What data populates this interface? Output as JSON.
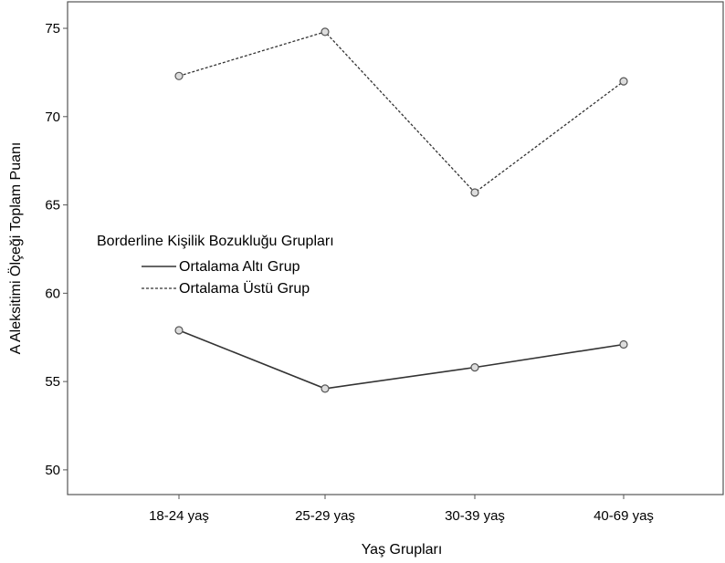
{
  "chart_data": {
    "type": "line",
    "title": "",
    "xlabel": "Yaş Grupları",
    "ylabel": "A Aleksitimi Ölçeği Toplam Puanı",
    "categories": [
      "18-24 yaş",
      "25-29 yaş",
      "30-39 yaş",
      "40-69 yaş"
    ],
    "ylim": [
      48.6,
      76.5
    ],
    "yticks": [
      50,
      55,
      60,
      65,
      70,
      75
    ],
    "grid": false,
    "legend": {
      "title": "Borderline Kişilik Bozukluğu Grupları",
      "placement": "center-left"
    },
    "series": [
      {
        "name": "Ortalama Altı Grup",
        "style": "solid",
        "values": [
          57.9,
          54.6,
          55.8,
          57.1
        ]
      },
      {
        "name": "Ortalama Üstü Grup",
        "style": "dashed",
        "values": [
          72.3,
          74.8,
          65.7,
          72.0
        ]
      }
    ],
    "colors": {
      "line": "#333333",
      "marker_fill": "#dddddd",
      "marker_stroke": "#555555",
      "frame": "#555555"
    }
  }
}
